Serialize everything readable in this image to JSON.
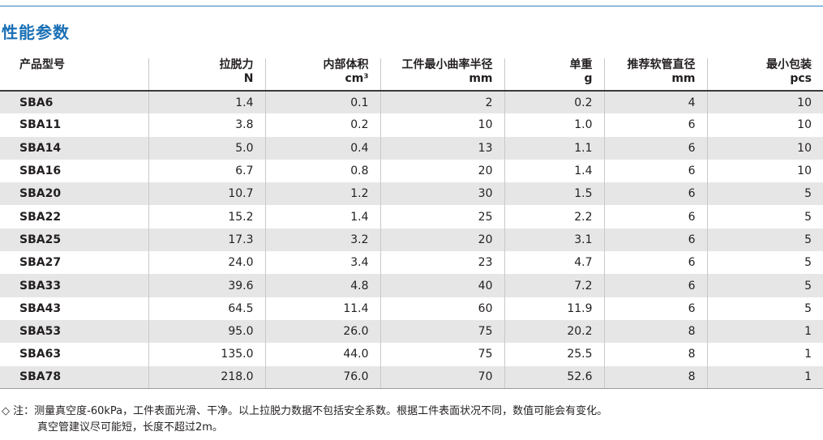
{
  "title": "性能参数",
  "table": {
    "headers": [
      {
        "label": "产品型号",
        "unit": ""
      },
      {
        "label": "拉脱力",
        "unit": "N"
      },
      {
        "label": "内部体积",
        "unit": "cm³"
      },
      {
        "label": "工件最小曲率半径",
        "unit": "mm"
      },
      {
        "label": "单重",
        "unit": "g"
      },
      {
        "label": "推荐软管直径",
        "unit": "mm"
      },
      {
        "label": "最小包装",
        "unit": "pcs"
      }
    ],
    "rows": [
      [
        "SBA6",
        "1.4",
        "0.1",
        "2",
        "0.2",
        "4",
        "10"
      ],
      [
        "SBA11",
        "3.8",
        "0.2",
        "10",
        "1.0",
        "6",
        "10"
      ],
      [
        "SBA14",
        "5.0",
        "0.4",
        "13",
        "1.1",
        "6",
        "10"
      ],
      [
        "SBA16",
        "6.7",
        "0.8",
        "20",
        "1.4",
        "6",
        "10"
      ],
      [
        "SBA20",
        "10.7",
        "1.2",
        "30",
        "1.5",
        "6",
        "5"
      ],
      [
        "SBA22",
        "15.2",
        "1.4",
        "25",
        "2.2",
        "6",
        "5"
      ],
      [
        "SBA25",
        "17.3",
        "3.2",
        "20",
        "3.1",
        "6",
        "5"
      ],
      [
        "SBA27",
        "24.0",
        "3.4",
        "23",
        "4.7",
        "6",
        "5"
      ],
      [
        "SBA33",
        "39.6",
        "4.8",
        "40",
        "7.2",
        "6",
        "5"
      ],
      [
        "SBA43",
        "64.5",
        "11.4",
        "60",
        "11.9",
        "6",
        "5"
      ],
      [
        "SBA53",
        "95.0",
        "26.0",
        "75",
        "20.2",
        "8",
        "1"
      ],
      [
        "SBA63",
        "135.0",
        "44.0",
        "75",
        "25.5",
        "8",
        "1"
      ],
      [
        "SBA78",
        "218.0",
        "76.0",
        "70",
        "52.6",
        "8",
        "1"
      ]
    ]
  },
  "note": {
    "line1": "◇ 注：测量真空度-60kPa，工件表面光滑、干净。以上拉脱力数据不包括安全系数。根据工件表面状况不同，数值可能会有变化。",
    "line2": "真空管建议尽可能短，长度不超过2m。"
  },
  "colors": {
    "title": "#1a6fb5",
    "rule": "#2f7fbd",
    "stripe": "#e6e6e6"
  }
}
